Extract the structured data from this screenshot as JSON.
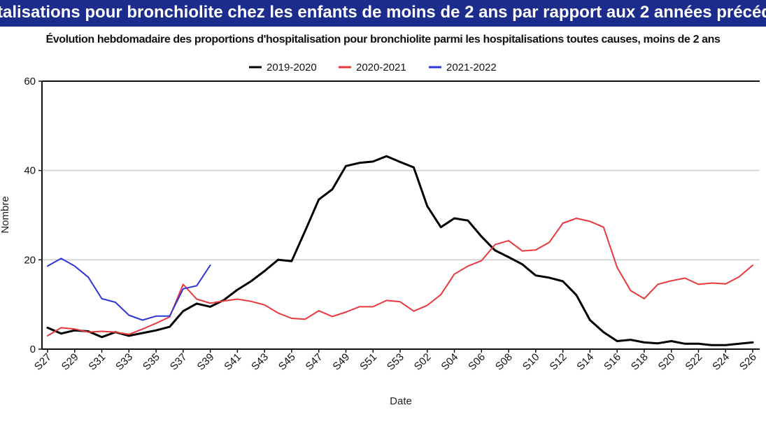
{
  "banner": {
    "text": "talisations pour bronchiolite chez les enfants de moins de 2 ans par rapport aux 2 années précéd"
  },
  "colors": {
    "banner_bg": "#1c2c8c",
    "grid": "#cccccc",
    "axis": "#111111"
  },
  "chart_data": {
    "type": "line",
    "title": "Évolution hebdomadaire des proportions d'hospitalisation pour bronchiolite parmi les hospitalisations toutes causes, moins de 2 ans",
    "xlabel": "Date",
    "ylabel": "Nombre",
    "ylim": [
      0,
      60
    ],
    "yticks": [
      0,
      20,
      40,
      60
    ],
    "grid": "horizontal",
    "legend_position": "top-center",
    "x": [
      "S27",
      "S28",
      "S29",
      "S30",
      "S31",
      "S32",
      "S33",
      "S34",
      "S35",
      "S36",
      "S37",
      "S38",
      "S39",
      "S40",
      "S41",
      "S42",
      "S43",
      "S44",
      "S45",
      "S46",
      "S47",
      "S48",
      "S49",
      "S50",
      "S51",
      "S52",
      "S53",
      "S01",
      "S02",
      "S03",
      "S04",
      "S05",
      "S06",
      "S07",
      "S08",
      "S09",
      "S10",
      "S11",
      "S12",
      "S13",
      "S14",
      "S15",
      "S16",
      "S17",
      "S18",
      "S19",
      "S20",
      "S21",
      "S22",
      "S23",
      "S24",
      "S25",
      "S26"
    ],
    "xtick_labels": [
      "S27",
      "S29",
      "S31",
      "S33",
      "S35",
      "S37",
      "S39",
      "S41",
      "S43",
      "S45",
      "S47",
      "S49",
      "S51",
      "S53",
      "S02",
      "S04",
      "S06",
      "S08",
      "S10",
      "S12",
      "S14",
      "S16",
      "S18",
      "S20",
      "S22",
      "S24",
      "S26"
    ],
    "series": [
      {
        "name": "2019-2020",
        "color": "#000000",
        "values": [
          4.8,
          3.5,
          4.2,
          4.0,
          2.7,
          3.8,
          3.0,
          3.6,
          4.2,
          5.0,
          8.5,
          10.2,
          9.5,
          11.0,
          13.3,
          15.2,
          17.5,
          20.0,
          19.7,
          26.5,
          33.5,
          35.8,
          41.0,
          41.7,
          42.0,
          43.2,
          41.9,
          40.7,
          32.0,
          27.3,
          29.3,
          28.8,
          25.2,
          22.1,
          20.6,
          19.0,
          16.5,
          16.0,
          15.2,
          12.1,
          6.5,
          3.8,
          1.8,
          2.1,
          1.5,
          1.3,
          1.8,
          1.2,
          1.2,
          0.9,
          0.9,
          1.2,
          1.5
        ]
      },
      {
        "name": "2020-2021",
        "color": "#e8383d",
        "values": [
          3.0,
          4.8,
          4.5,
          3.8,
          4.0,
          3.8,
          3.3,
          4.5,
          5.8,
          7.2,
          14.5,
          11.2,
          10.3,
          10.8,
          11.2,
          10.7,
          9.9,
          8.1,
          6.9,
          6.7,
          8.6,
          7.3,
          8.3,
          9.5,
          9.5,
          10.9,
          10.6,
          8.5,
          9.8,
          12.2,
          16.8,
          18.6,
          19.8,
          23.4,
          24.3,
          22.0,
          22.2,
          23.9,
          28.2,
          29.3,
          28.6,
          27.3,
          18.3,
          13.1,
          11.3,
          14.5,
          15.3,
          15.9,
          14.5,
          14.8,
          14.6,
          16.2,
          18.8
        ]
      },
      {
        "name": "2021-2022",
        "color": "#3035d6",
        "values": [
          18.6,
          20.3,
          18.6,
          16.1,
          11.3,
          10.5,
          7.6,
          6.5,
          7.4,
          7.4,
          13.5,
          14.2,
          18.8,
          null,
          null,
          null,
          null,
          null,
          null,
          null,
          null,
          null,
          null,
          null,
          null,
          null,
          null,
          null,
          null,
          null,
          null,
          null,
          null,
          null,
          null,
          null,
          null,
          null,
          null,
          null,
          null,
          null,
          null,
          null,
          null,
          null,
          null,
          null,
          null,
          null,
          null,
          null,
          null
        ]
      }
    ]
  }
}
